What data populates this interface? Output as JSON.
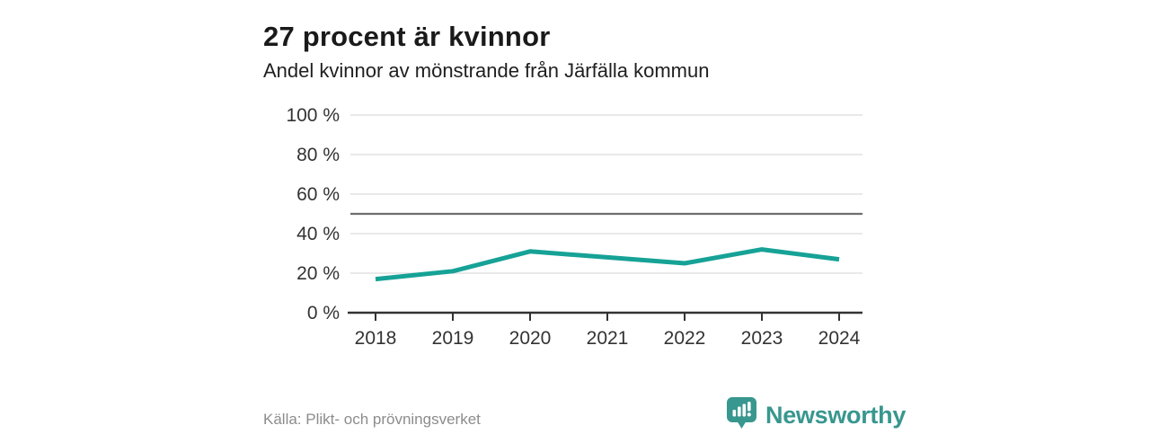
{
  "header": {
    "title": "27 procent är kvinnor",
    "subtitle": "Andel kvinnor av mönstrande från Järfälla kommun"
  },
  "chart_data": {
    "type": "line",
    "title": "27 procent är kvinnor",
    "subtitle": "Andel kvinnor av mönstrande från Järfälla kommun",
    "x": [
      "2018",
      "2019",
      "2020",
      "2021",
      "2022",
      "2023",
      "2024"
    ],
    "series": [
      {
        "name": "Andel kvinnor av mönstrande",
        "values": [
          17,
          21,
          31,
          28,
          25,
          32,
          27
        ]
      }
    ],
    "xlabel": "",
    "ylabel": "",
    "ylim": [
      0,
      100
    ],
    "yticks": [
      0,
      20,
      40,
      60,
      80,
      100
    ],
    "ytick_labels": [
      "0 %",
      "20 %",
      "40 %",
      "60 %",
      "80 %",
      "100 %"
    ],
    "reference_line": 50,
    "grid": true,
    "legend": "none",
    "colors": {
      "line": "#16a296",
      "gridline": "#e2e2e2",
      "reference_line": "#6e6e6e",
      "axis": "#333333"
    }
  },
  "footer": {
    "source": "Källa: Plikt- och prövningsverket",
    "logo": {
      "icon": "bar-chart-speech-bubble-icon",
      "text": "Newsworthy",
      "color": "#38978f"
    }
  }
}
